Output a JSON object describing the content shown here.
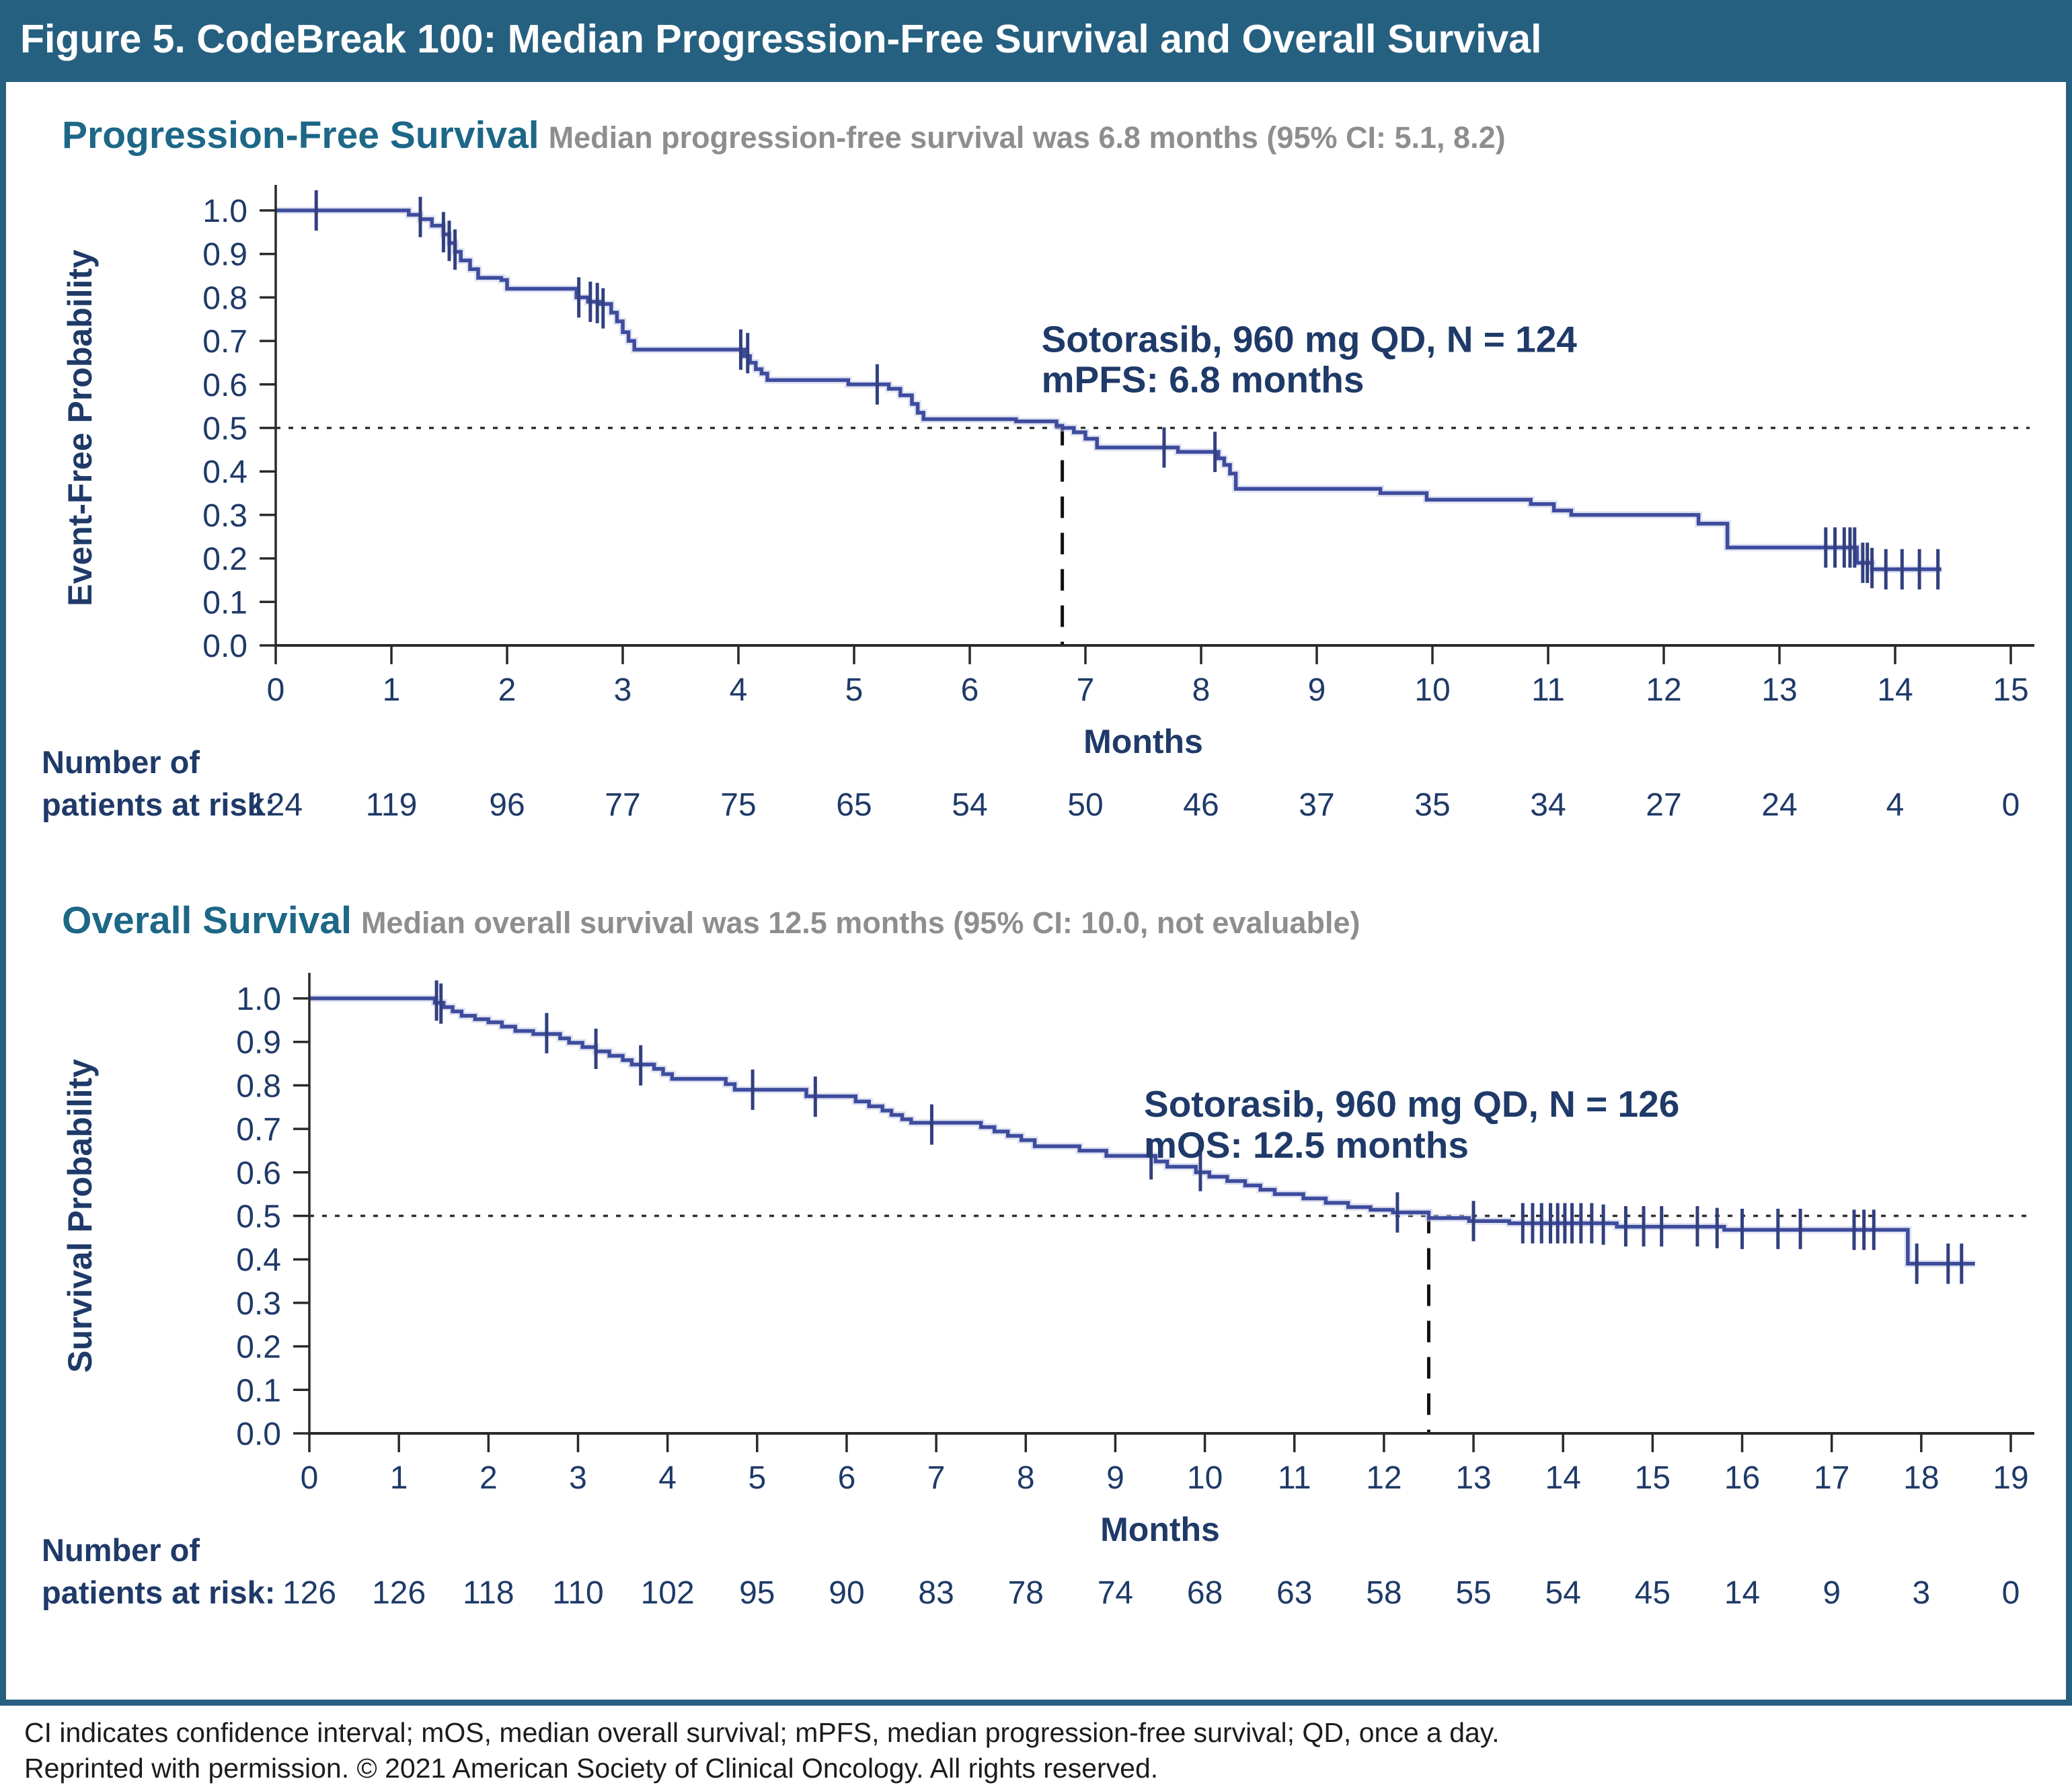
{
  "header": {
    "title": "Figure 5. CodeBreak 100: Median Progression-Free Survival and Overall Survival"
  },
  "colors": {
    "teal": "#266080",
    "panel_title": "#1d6787",
    "subtitle_gray": "#8e8e90",
    "navy": "#1f3a68",
    "curve": "#3e4c9e",
    "censor": "#32407f",
    "axis": "#2a2a2a",
    "dotted_line": "#2f2f2f",
    "median_dash": "#111111",
    "footer_text": "#1c1c1c"
  },
  "chart_data": [
    {
      "type": "line",
      "subtype": "kaplan-meier-step",
      "title": "Progression-Free Survival",
      "subtitle": "Median progression-free survival was 6.8 months (95% CI: 5.1, 8.2)",
      "ylabel": "Event-Free Probability",
      "xlabel": "Months",
      "xlim": [
        0,
        15
      ],
      "ylim": [
        0.0,
        1.0
      ],
      "x_ticks": [
        0,
        1,
        2,
        3,
        4,
        5,
        6,
        7,
        8,
        9,
        10,
        11,
        12,
        13,
        14,
        15
      ],
      "y_tick_labels": [
        "0.0",
        "0.1",
        "0.2",
        "0.3",
        "0.4",
        "0.5",
        "0.6",
        "0.7",
        "0.8",
        "0.9",
        "1.0"
      ],
      "grid": false,
      "reference_line_y": 0.5,
      "median_line": {
        "x": 6.8,
        "y": 0.5
      },
      "annotation": {
        "lines": [
          "Sotorasib, 960 mg QD, N = 124",
          "mPFS: 6.8 months"
        ],
        "x": 6.62,
        "y": [
          0.675,
          0.582
        ]
      },
      "curve": [
        [
          0,
          1.0
        ],
        [
          1.1,
          1.0
        ],
        [
          1.15,
          0.99
        ],
        [
          1.25,
          0.98
        ],
        [
          1.35,
          0.965
        ],
        [
          1.45,
          0.945
        ],
        [
          1.5,
          0.925
        ],
        [
          1.55,
          0.905
        ],
        [
          1.6,
          0.885
        ],
        [
          1.68,
          0.865
        ],
        [
          1.75,
          0.845
        ],
        [
          1.95,
          0.84
        ],
        [
          2.0,
          0.82
        ],
        [
          2.6,
          0.8
        ],
        [
          2.7,
          0.79
        ],
        [
          2.8,
          0.785
        ],
        [
          2.9,
          0.765
        ],
        [
          2.95,
          0.745
        ],
        [
          3.0,
          0.72
        ],
        [
          3.05,
          0.7
        ],
        [
          3.1,
          0.68
        ],
        [
          4.05,
          0.665
        ],
        [
          4.1,
          0.65
        ],
        [
          4.15,
          0.635
        ],
        [
          4.2,
          0.625
        ],
        [
          4.25,
          0.61
        ],
        [
          4.95,
          0.6
        ],
        [
          5.3,
          0.59
        ],
        [
          5.4,
          0.575
        ],
        [
          5.5,
          0.555
        ],
        [
          5.55,
          0.535
        ],
        [
          5.6,
          0.52
        ],
        [
          6.4,
          0.515
        ],
        [
          6.75,
          0.505
        ],
        [
          6.8,
          0.5
        ],
        [
          6.9,
          0.49
        ],
        [
          7.0,
          0.475
        ],
        [
          7.1,
          0.455
        ],
        [
          7.8,
          0.445
        ],
        [
          8.15,
          0.43
        ],
        [
          8.2,
          0.415
        ],
        [
          8.25,
          0.395
        ],
        [
          8.3,
          0.36
        ],
        [
          9.55,
          0.35
        ],
        [
          9.95,
          0.335
        ],
        [
          10.85,
          0.325
        ],
        [
          11.05,
          0.31
        ],
        [
          11.2,
          0.3
        ],
        [
          12.3,
          0.28
        ],
        [
          12.55,
          0.225
        ],
        [
          13.67,
          0.19
        ],
        [
          13.8,
          0.175
        ],
        [
          14.4,
          0.175
        ]
      ],
      "censors": [
        [
          0.35,
          1.0
        ],
        [
          1.25,
          0.985
        ],
        [
          1.45,
          0.95
        ],
        [
          1.5,
          0.93
        ],
        [
          1.55,
          0.91
        ],
        [
          2.62,
          0.8
        ],
        [
          2.72,
          0.79
        ],
        [
          2.78,
          0.787
        ],
        [
          2.83,
          0.775
        ],
        [
          4.02,
          0.68
        ],
        [
          4.08,
          0.672
        ],
        [
          5.2,
          0.6
        ],
        [
          7.68,
          0.455
        ],
        [
          8.12,
          0.445
        ],
        [
          13.4,
          0.225
        ],
        [
          13.48,
          0.225
        ],
        [
          13.56,
          0.225
        ],
        [
          13.61,
          0.225
        ],
        [
          13.65,
          0.225
        ],
        [
          13.72,
          0.19
        ],
        [
          13.76,
          0.19
        ],
        [
          13.8,
          0.178
        ],
        [
          13.92,
          0.175
        ],
        [
          14.06,
          0.175
        ],
        [
          14.21,
          0.175
        ],
        [
          14.37,
          0.175
        ]
      ],
      "risk_label": [
        "Number of",
        "patients at risk:"
      ],
      "risk_values": [
        124,
        119,
        96,
        77,
        75,
        65,
        54,
        50,
        46,
        37,
        35,
        34,
        27,
        24,
        4,
        0
      ]
    },
    {
      "type": "line",
      "subtype": "kaplan-meier-step",
      "title": "Overall Survival",
      "subtitle": "Median overall survival was 12.5 months (95% CI: 10.0, not evaluable)",
      "ylabel": "Survival Probability",
      "xlabel": "Months",
      "xlim": [
        0,
        19
      ],
      "ylim": [
        0.0,
        1.0
      ],
      "x_ticks": [
        0,
        1,
        2,
        3,
        4,
        5,
        6,
        7,
        8,
        9,
        10,
        11,
        12,
        13,
        14,
        15,
        16,
        17,
        18,
        19
      ],
      "y_tick_labels": [
        "0.0",
        "0.1",
        "0.2",
        "0.3",
        "0.4",
        "0.5",
        "0.6",
        "0.7",
        "0.8",
        "0.9",
        "1.0"
      ],
      "grid": false,
      "reference_line_y": 0.5,
      "median_line": {
        "x": 12.5,
        "y": 0.5
      },
      "annotation": {
        "lines": [
          "Sotorasib, 960 mg QD, N = 126",
          "mOS: 12.5 months"
        ],
        "x": 9.32,
        "y": [
          0.728,
          0.634
        ]
      },
      "curve": [
        [
          0,
          1.0
        ],
        [
          1.35,
          1.0
        ],
        [
          1.4,
          0.99
        ],
        [
          1.5,
          0.98
        ],
        [
          1.6,
          0.97
        ],
        [
          1.7,
          0.96
        ],
        [
          1.85,
          0.952
        ],
        [
          2.0,
          0.945
        ],
        [
          2.15,
          0.935
        ],
        [
          2.3,
          0.925
        ],
        [
          2.5,
          0.918
        ],
        [
          2.8,
          0.908
        ],
        [
          2.9,
          0.898
        ],
        [
          3.05,
          0.888
        ],
        [
          3.2,
          0.878
        ],
        [
          3.35,
          0.868
        ],
        [
          3.5,
          0.858
        ],
        [
          3.6,
          0.848
        ],
        [
          3.85,
          0.838
        ],
        [
          3.95,
          0.826
        ],
        [
          4.05,
          0.815
        ],
        [
          4.65,
          0.803
        ],
        [
          4.75,
          0.79
        ],
        [
          5.55,
          0.775
        ],
        [
          6.1,
          0.763
        ],
        [
          6.25,
          0.752
        ],
        [
          6.4,
          0.742
        ],
        [
          6.5,
          0.732
        ],
        [
          6.62,
          0.722
        ],
        [
          6.72,
          0.714
        ],
        [
          7.5,
          0.704
        ],
        [
          7.65,
          0.694
        ],
        [
          7.8,
          0.684
        ],
        [
          7.95,
          0.674
        ],
        [
          8.1,
          0.66
        ],
        [
          8.6,
          0.65
        ],
        [
          8.9,
          0.638
        ],
        [
          9.45,
          0.625
        ],
        [
          9.58,
          0.613
        ],
        [
          9.9,
          0.6
        ],
        [
          10.05,
          0.59
        ],
        [
          10.25,
          0.58
        ],
        [
          10.45,
          0.57
        ],
        [
          10.62,
          0.56
        ],
        [
          10.78,
          0.55
        ],
        [
          11.1,
          0.54
        ],
        [
          11.35,
          0.53
        ],
        [
          11.6,
          0.52
        ],
        [
          11.85,
          0.514
        ],
        [
          12.1,
          0.508
        ],
        [
          12.5,
          0.495
        ],
        [
          12.95,
          0.488
        ],
        [
          13.4,
          0.483
        ],
        [
          14.6,
          0.475
        ],
        [
          15.8,
          0.468
        ],
        [
          17.85,
          0.39
        ],
        [
          18.6,
          0.39
        ]
      ],
      "censors": [
        [
          1.42,
          0.995
        ],
        [
          1.47,
          0.988
        ],
        [
          2.65,
          0.92
        ],
        [
          3.2,
          0.884
        ],
        [
          3.7,
          0.846
        ],
        [
          4.95,
          0.79
        ],
        [
          5.65,
          0.774
        ],
        [
          6.95,
          0.71
        ],
        [
          9.4,
          0.63
        ],
        [
          9.95,
          0.603
        ],
        [
          12.15,
          0.508
        ],
        [
          13.0,
          0.488
        ],
        [
          13.55,
          0.483
        ],
        [
          13.66,
          0.483
        ],
        [
          13.76,
          0.483
        ],
        [
          13.86,
          0.483
        ],
        [
          13.94,
          0.483
        ],
        [
          14.02,
          0.483
        ],
        [
          14.1,
          0.483
        ],
        [
          14.2,
          0.483
        ],
        [
          14.32,
          0.483
        ],
        [
          14.45,
          0.48
        ],
        [
          14.7,
          0.476
        ],
        [
          14.9,
          0.476
        ],
        [
          15.1,
          0.476
        ],
        [
          15.5,
          0.476
        ],
        [
          15.72,
          0.472
        ],
        [
          16.0,
          0.47
        ],
        [
          16.4,
          0.47
        ],
        [
          16.65,
          0.47
        ],
        [
          17.25,
          0.468
        ],
        [
          17.36,
          0.468
        ],
        [
          17.47,
          0.468
        ],
        [
          17.95,
          0.39
        ],
        [
          18.3,
          0.39
        ],
        [
          18.45,
          0.39
        ]
      ],
      "risk_label": [
        "Number of",
        "patients at risk:"
      ],
      "risk_values": [
        126,
        126,
        118,
        110,
        102,
        95,
        90,
        83,
        78,
        74,
        68,
        63,
        58,
        55,
        54,
        45,
        14,
        9,
        3,
        0
      ]
    }
  ],
  "footer": {
    "line1": "CI indicates confidence interval; mOS, median overall survival; mPFS, median progression-free survival; QD, once a day.",
    "line2": "Reprinted with permission. © 2021 American Society of Clinical Oncology. All rights reserved."
  }
}
